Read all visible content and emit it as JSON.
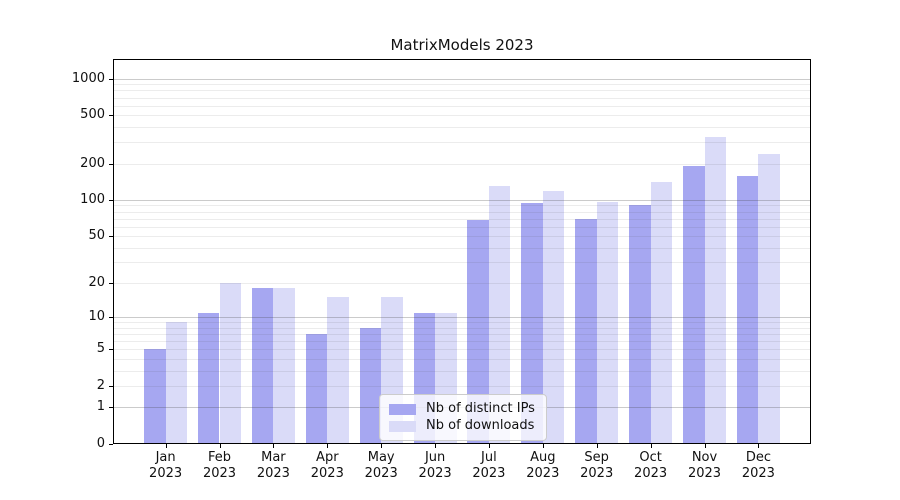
{
  "chart_data": {
    "type": "bar",
    "title": "MatrixModels 2023",
    "categories": [
      "Jan 2023",
      "Feb 2023",
      "Mar 2023",
      "Apr 2023",
      "May 2023",
      "Jun 2023",
      "Jul 2023",
      "Aug 2023",
      "Sep 2023",
      "Oct 2023",
      "Nov 2023",
      "Dec 2023"
    ],
    "series": [
      {
        "name": "Nb of distinct IPs",
        "color": "#a6a7f1",
        "values": [
          5,
          11,
          18,
          7,
          8,
          11,
          68,
          95,
          70,
          90,
          190,
          158
        ]
      },
      {
        "name": "Nb of downloads",
        "color": "#dadbf8",
        "values": [
          9,
          20,
          18,
          15,
          15,
          11,
          130,
          118,
          97,
          140,
          330,
          240
        ]
      }
    ],
    "xlabel": "",
    "ylabel": "",
    "yscale": "log1p",
    "ylim": [
      0,
      1450
    ],
    "yticks": [
      0,
      1,
      2,
      5,
      10,
      20,
      50,
      100,
      200,
      500,
      1000
    ],
    "grid": {
      "major_lines": [
        1,
        10,
        100,
        1000
      ],
      "minor_lines": [
        2,
        3,
        4,
        5,
        6,
        7,
        8,
        9,
        20,
        30,
        40,
        50,
        60,
        70,
        80,
        90,
        200,
        300,
        400,
        500,
        600,
        700,
        800,
        900
      ]
    },
    "legend_position": "lower center"
  }
}
